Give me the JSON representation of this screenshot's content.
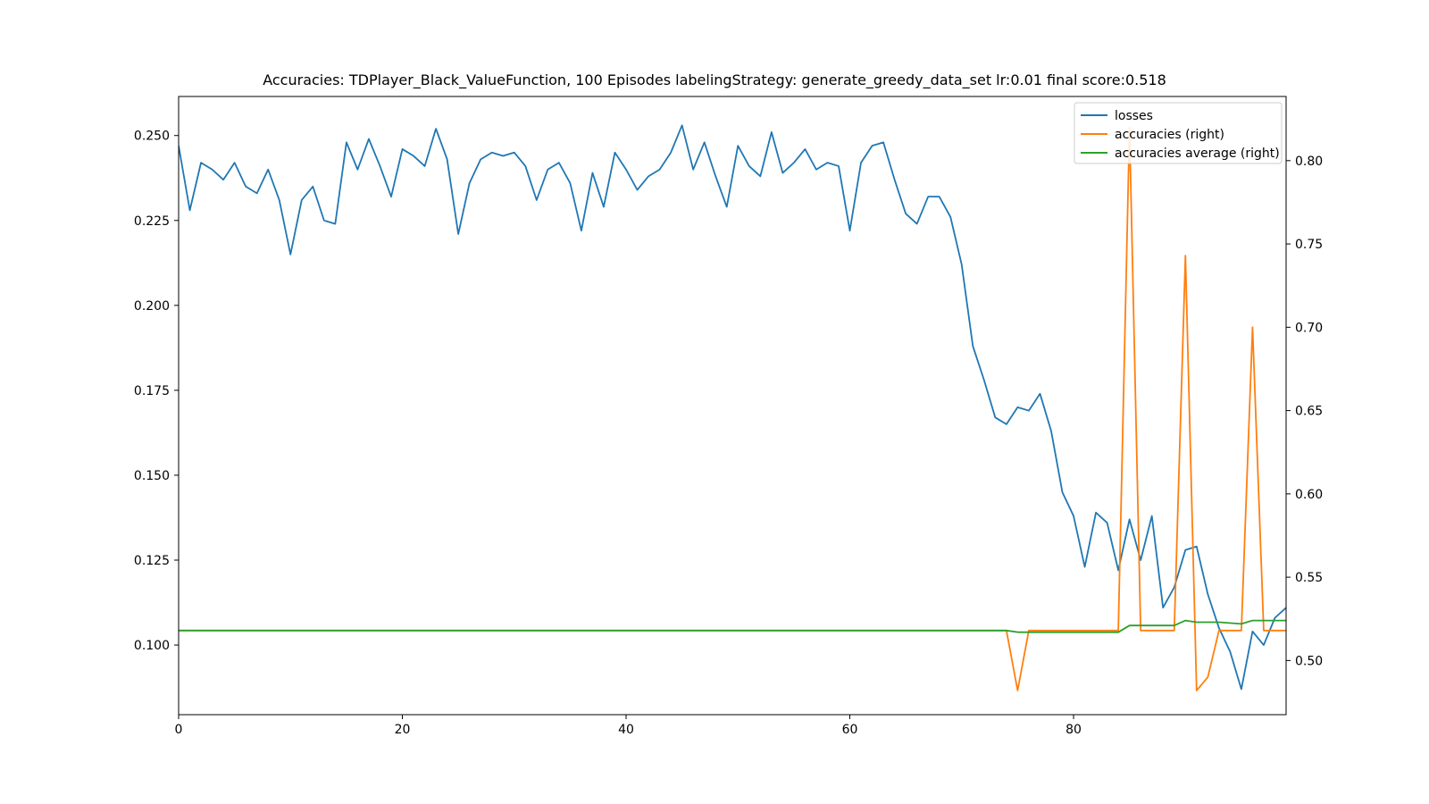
{
  "chart_data": {
    "type": "line",
    "title": "Accuracies: TDPlayer_Black_ValueFunction, 100 Episodes labelingStrategy: generate_greedy_data_set lr:0.01 final score:0.518",
    "xlabel": "",
    "ylabel": "",
    "xlim": [
      0,
      99
    ],
    "ylim_left": [
      0.0795,
      0.2615
    ],
    "ylim_right": [
      0.4675,
      0.8385
    ],
    "x_ticks": [
      0,
      20,
      40,
      60,
      80
    ],
    "y_ticks_left": [
      0.1,
      0.125,
      0.15,
      0.175,
      0.2,
      0.225,
      0.25
    ],
    "y_ticks_right": [
      0.5,
      0.55,
      0.6,
      0.65,
      0.7,
      0.75,
      0.8
    ],
    "x_tick_labels": [
      "0",
      "20",
      "40",
      "60",
      "80"
    ],
    "y_tick_labels_left": [
      "0.100",
      "0.125",
      "0.150",
      "0.175",
      "0.200",
      "0.225",
      "0.250"
    ],
    "y_tick_labels_right": [
      "0.50",
      "0.55",
      "0.60",
      "0.65",
      "0.70",
      "0.75",
      "0.80"
    ],
    "grid": false,
    "legend_position": "top-right",
    "series": [
      {
        "name": "losses",
        "axis": "left",
        "color": "#1f77b4",
        "x": [
          0,
          1,
          2,
          3,
          4,
          5,
          6,
          7,
          8,
          9,
          10,
          11,
          12,
          13,
          14,
          15,
          16,
          17,
          18,
          19,
          20,
          21,
          22,
          23,
          24,
          25,
          26,
          27,
          28,
          29,
          30,
          31,
          32,
          33,
          34,
          35,
          36,
          37,
          38,
          39,
          40,
          41,
          42,
          43,
          44,
          45,
          46,
          47,
          48,
          49,
          50,
          51,
          52,
          53,
          54,
          55,
          56,
          57,
          58,
          59,
          60,
          61,
          62,
          63,
          64,
          65,
          66,
          67,
          68,
          69,
          70,
          71,
          72,
          73,
          74,
          75,
          76,
          77,
          78,
          79,
          80,
          81,
          82,
          83,
          84,
          85,
          86,
          87,
          88,
          89,
          90,
          91,
          92,
          93,
          94,
          95,
          96,
          97,
          98,
          99
        ],
        "values": [
          0.247,
          0.228,
          0.242,
          0.24,
          0.237,
          0.242,
          0.235,
          0.233,
          0.24,
          0.231,
          0.215,
          0.231,
          0.235,
          0.225,
          0.224,
          0.248,
          0.24,
          0.249,
          0.241,
          0.232,
          0.246,
          0.244,
          0.241,
          0.252,
          0.243,
          0.221,
          0.236,
          0.243,
          0.245,
          0.244,
          0.245,
          0.241,
          0.231,
          0.24,
          0.242,
          0.236,
          0.222,
          0.239,
          0.229,
          0.245,
          0.24,
          0.234,
          0.238,
          0.24,
          0.245,
          0.253,
          0.24,
          0.248,
          0.238,
          0.229,
          0.247,
          0.241,
          0.238,
          0.251,
          0.239,
          0.242,
          0.246,
          0.24,
          0.242,
          0.241,
          0.222,
          0.242,
          0.247,
          0.248,
          0.237,
          0.227,
          0.224,
          0.232,
          0.232,
          0.226,
          0.212,
          0.188,
          0.178,
          0.167,
          0.165,
          0.17,
          0.169,
          0.174,
          0.163,
          0.145,
          0.138,
          0.123,
          0.139,
          0.136,
          0.122,
          0.137,
          0.125,
          0.138,
          0.111,
          0.117,
          0.128,
          0.129,
          0.115,
          0.105,
          0.098,
          0.087,
          0.104,
          0.1,
          0.108,
          0.111
        ]
      },
      {
        "name": "accuracies (right)",
        "axis": "right",
        "color": "#ff7f0e",
        "x": [
          0,
          74,
          75,
          76,
          84,
          85,
          86,
          89,
          90,
          91,
          92,
          93,
          95,
          96,
          97,
          99
        ],
        "values": [
          0.518,
          0.518,
          0.482,
          0.518,
          0.518,
          0.82,
          0.518,
          0.518,
          0.743,
          0.482,
          0.49,
          0.518,
          0.518,
          0.7,
          0.518,
          0.518
        ]
      },
      {
        "name": "accuracies average (right)",
        "axis": "right",
        "color": "#2ca02c",
        "x": [
          0,
          74,
          75,
          76,
          84,
          85,
          86,
          89,
          90,
          91,
          92,
          93,
          95,
          96,
          97,
          99
        ],
        "values": [
          0.518,
          0.518,
          0.517,
          0.517,
          0.517,
          0.521,
          0.521,
          0.521,
          0.524,
          0.523,
          0.523,
          0.523,
          0.522,
          0.524,
          0.524,
          0.524
        ]
      }
    ]
  }
}
